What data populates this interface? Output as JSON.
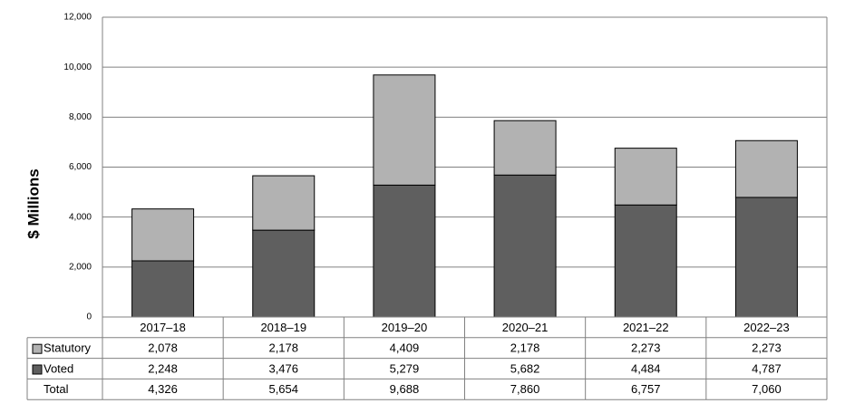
{
  "chart_data": {
    "type": "stacked-bar",
    "y_label": "$ Millions",
    "categories": [
      "2017–18",
      "2018–19",
      "2019–20",
      "2020–21",
      "2021–22",
      "2022–23"
    ],
    "series": [
      {
        "name": "Statutory",
        "color": "#b2b2b2",
        "values": [
          2078,
          2178,
          4409,
          2178,
          2273,
          2273
        ],
        "value_labels": [
          "2,078",
          "2,178",
          "4,409",
          "2,178",
          "2,273",
          "2,273"
        ]
      },
      {
        "name": "Voted",
        "color": "#5f5f5f",
        "values": [
          2248,
          3476,
          5279,
          5682,
          4484,
          4787
        ],
        "value_labels": [
          "2,248",
          "3,476",
          "5,279",
          "5,682",
          "4,484",
          "4,787"
        ]
      }
    ],
    "total": {
      "name": "Total",
      "values": [
        4326,
        5654,
        9688,
        7860,
        6757,
        7060
      ],
      "value_labels": [
        "4,326",
        "5,654",
        "9,688",
        "7,860",
        "6,757",
        "7,060"
      ]
    },
    "ylim": [
      0,
      12000
    ],
    "yticks": [
      0,
      {
        "value": 2000,
        "label": "2,000"
      },
      {
        "value": 4000,
        "label": "4,000"
      },
      {
        "value": 6000,
        "label": "6,000"
      },
      {
        "value": 8000,
        "label": "8,000"
      },
      {
        "value": 10000,
        "label": "10,000"
      },
      {
        "value": 12000,
        "label": "12,000"
      }
    ],
    "grid": true
  }
}
